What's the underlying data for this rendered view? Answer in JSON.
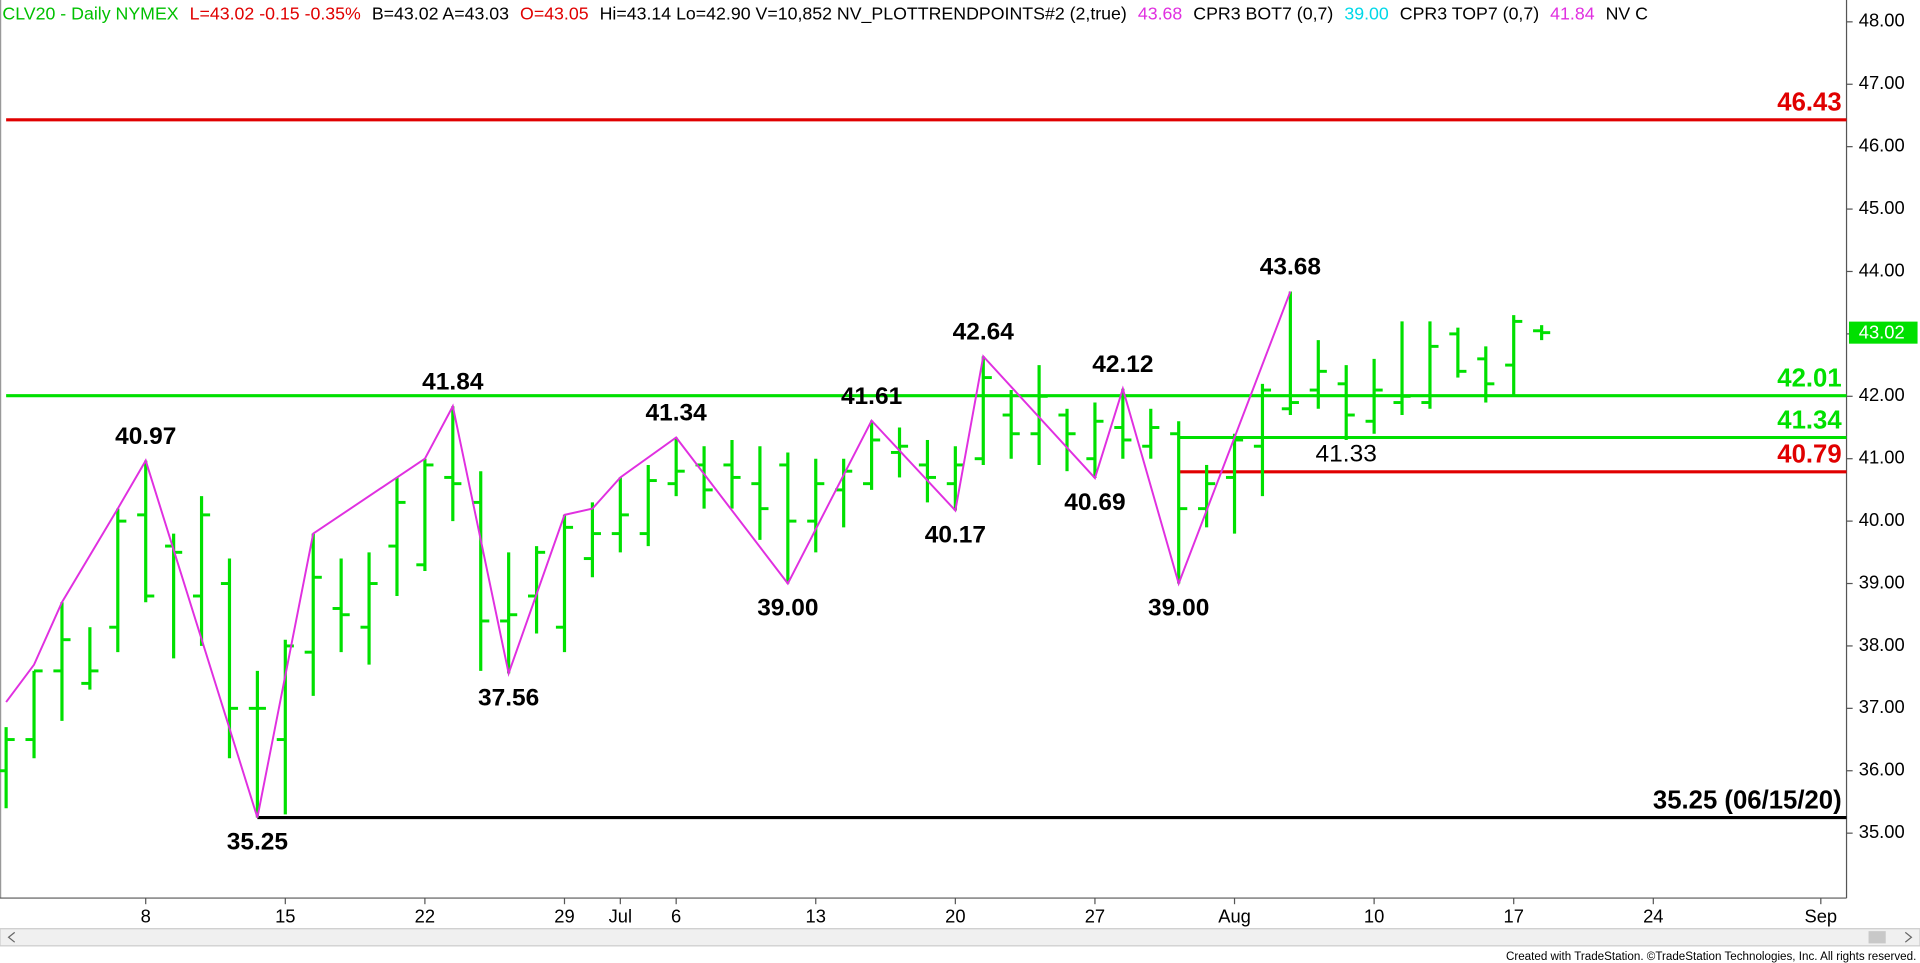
{
  "chart_data": {
    "type": "ohlc",
    "header": [
      {
        "text": "CLV20 - Daily  NYMEX",
        "color": "#00c000"
      },
      {
        "text": "L=43.02  -0.15  -0.35%",
        "color": "#e00000"
      },
      {
        "text": "B=43.02  A=43.03",
        "color": "#000000"
      },
      {
        "text": "O=43.05",
        "color": "#e00000"
      },
      {
        "text": "Hi=43.14  Lo=42.90  V=10,852  NV_PLOTTRENDPOINTS#2 (2,true)",
        "color": "#000000"
      },
      {
        "text": "43.68",
        "color": "#e030e0"
      },
      {
        "text": "CPR3 BOT7 (0,7)",
        "color": "#000000"
      },
      {
        "text": "39.00",
        "color": "#00d8e8"
      },
      {
        "text": "CPR3 TOP7 (0,7)",
        "color": "#000000"
      },
      {
        "text": "41.84",
        "color": "#e030e0"
      },
      {
        "text": "NV C",
        "color": "#000000"
      }
    ],
    "categories": [
      null,
      null,
      null,
      null,
      null,
      "8",
      null,
      null,
      null,
      null,
      "15",
      null,
      null,
      null,
      null,
      "22",
      null,
      null,
      null,
      null,
      "29",
      null,
      "Jul",
      null,
      "6",
      null,
      null,
      null,
      null,
      "13",
      null,
      null,
      null,
      null,
      "20",
      null,
      null,
      null,
      null,
      "27",
      null,
      null,
      null,
      null,
      "Aug",
      null,
      null,
      null,
      null,
      "10",
      null,
      null,
      null,
      null,
      "17",
      null,
      null,
      null,
      null,
      "24",
      null,
      null,
      null,
      null,
      null,
      "Sep"
    ],
    "open": [
      36.0,
      36.5,
      37.6,
      37.4,
      38.3,
      40.1,
      39.6,
      38.8,
      39.0,
      37.0,
      36.5,
      37.9,
      38.6,
      38.3,
      39.6,
      39.3,
      40.7,
      40.3,
      38.4,
      38.8,
      38.3,
      39.4,
      39.8,
      39.8,
      40.6,
      40.9,
      40.9,
      40.6,
      40.9,
      40.0,
      40.5,
      40.6,
      41.1,
      40.9,
      40.6,
      41.0,
      41.7,
      41.4,
      41.7,
      41.0,
      41.5,
      41.2,
      41.4,
      40.2,
      40.7,
      41.2,
      41.8,
      42.1,
      42.2,
      41.6,
      41.9,
      41.9,
      43.0,
      42.6,
      42.5,
      43.05,
      null,
      null,
      null,
      null,
      null,
      null,
      null,
      null,
      null,
      null
    ],
    "high": [
      36.7,
      37.6,
      38.7,
      38.3,
      40.2,
      40.97,
      39.8,
      40.4,
      39.4,
      37.6,
      38.1,
      39.8,
      39.4,
      39.5,
      40.7,
      41.0,
      41.84,
      40.8,
      39.5,
      39.6,
      40.1,
      40.3,
      40.7,
      40.9,
      41.34,
      41.2,
      41.3,
      41.2,
      41.1,
      41.0,
      41.0,
      41.61,
      41.5,
      41.3,
      41.2,
      42.64,
      42.1,
      42.5,
      41.8,
      41.9,
      42.12,
      41.8,
      41.6,
      40.9,
      41.4,
      42.2,
      43.68,
      42.9,
      42.5,
      42.6,
      43.2,
      43.2,
      43.1,
      42.8,
      43.3,
      43.14,
      null,
      null,
      null,
      null,
      null,
      null,
      null,
      null,
      null,
      null
    ],
    "low": [
      35.4,
      36.2,
      36.8,
      37.3,
      37.9,
      38.7,
      37.8,
      38.0,
      36.2,
      35.25,
      35.3,
      37.2,
      37.9,
      37.7,
      38.8,
      39.2,
      40.0,
      37.6,
      37.56,
      38.2,
      37.9,
      39.1,
      39.5,
      39.6,
      40.4,
      40.2,
      40.2,
      39.7,
      39.0,
      39.5,
      39.9,
      40.5,
      40.7,
      40.3,
      40.17,
      40.9,
      41.0,
      40.9,
      40.8,
      40.69,
      41.0,
      41.0,
      39.0,
      39.9,
      39.8,
      40.4,
      41.7,
      41.8,
      41.3,
      41.4,
      41.7,
      41.8,
      42.3,
      41.9,
      42.0,
      42.9,
      null,
      null,
      null,
      null,
      null,
      null,
      null,
      null,
      null,
      null
    ],
    "close": [
      36.5,
      37.6,
      38.1,
      37.6,
      40.0,
      38.8,
      39.5,
      40.1,
      37.0,
      37.0,
      38.0,
      39.1,
      38.5,
      39.0,
      40.3,
      40.9,
      40.6,
      38.4,
      38.5,
      39.5,
      39.9,
      39.8,
      40.1,
      40.65,
      40.8,
      40.5,
      40.7,
      40.2,
      40.0,
      40.6,
      40.8,
      41.3,
      41.2,
      40.7,
      40.9,
      42.3,
      41.4,
      42.0,
      41.4,
      41.6,
      41.3,
      41.5,
      40.2,
      40.6,
      41.3,
      42.1,
      41.9,
      42.4,
      41.7,
      42.1,
      42.0,
      42.8,
      42.4,
      42.2,
      43.2,
      43.02,
      null,
      null,
      null,
      null,
      null,
      null,
      null,
      null,
      null,
      null
    ],
    "color": "#00e000",
    "ylim": [
      33.96,
      48.35
    ],
    "yticks": [
      {
        "value": 35,
        "label": "35.00"
      },
      {
        "value": 36,
        "label": "36.00"
      },
      {
        "value": 37,
        "label": "37.00"
      },
      {
        "value": 38,
        "label": "38.00"
      },
      {
        "value": 39,
        "label": "39.00"
      },
      {
        "value": 40,
        "label": "40.00"
      },
      {
        "value": 41,
        "label": "41.00"
      },
      {
        "value": 42,
        "label": "42.00"
      },
      {
        "value": 43,
        "label": "43.00"
      },
      {
        "value": 44,
        "label": "44.00"
      },
      {
        "value": 45,
        "label": "45.00"
      },
      {
        "value": 46,
        "label": "46.00"
      },
      {
        "value": 47,
        "label": "47.00"
      },
      {
        "value": 48,
        "label": "48.00"
      }
    ],
    "trendline": {
      "color": "#e030e0",
      "x": [
        0,
        1,
        2,
        4,
        5,
        9,
        11,
        15,
        16,
        18,
        20,
        21,
        22,
        24,
        28,
        31,
        34,
        35,
        39,
        40,
        42,
        46
      ],
      "values": [
        37.1,
        37.7,
        38.7,
        40.2,
        40.97,
        35.25,
        39.8,
        41.0,
        41.84,
        37.56,
        40.1,
        40.2,
        40.7,
        41.34,
        39.0,
        41.61,
        40.17,
        42.64,
        40.69,
        42.12,
        39.0,
        43.68
      ],
      "value_labels": [
        null,
        null,
        null,
        null,
        "40.97",
        "35.25",
        null,
        null,
        "41.84",
        "37.56",
        null,
        null,
        null,
        "41.34",
        "39.00",
        "41.61",
        "40.17",
        "42.64",
        "40.69",
        "42.12",
        "39.00",
        "43.68"
      ]
    },
    "levels": [
      {
        "value": 46.43,
        "label": "46.43",
        "color": "#e00000",
        "x_start": 0
      },
      {
        "value": 42.01,
        "label": "42.01",
        "color": "#00e000",
        "x_start": 0
      },
      {
        "value": 41.34,
        "label": "41.34",
        "color": "#00e000",
        "x_start": 42
      },
      {
        "value": 40.79,
        "label": "40.79",
        "color": "#e00000",
        "x_start": 42
      },
      {
        "value": 35.25,
        "label": "35.25 (06/15/20)",
        "color": "#000000",
        "x_start": 9
      }
    ],
    "annotations": [
      {
        "value": 41.33,
        "label": "41.33",
        "x": 48
      }
    ],
    "last_price": {
      "value": 43.02,
      "label": "43.02",
      "color": "#00e000"
    },
    "footer": "Created with TradeStation. ©TradeStation Technologies, Inc. All rights reserved."
  }
}
